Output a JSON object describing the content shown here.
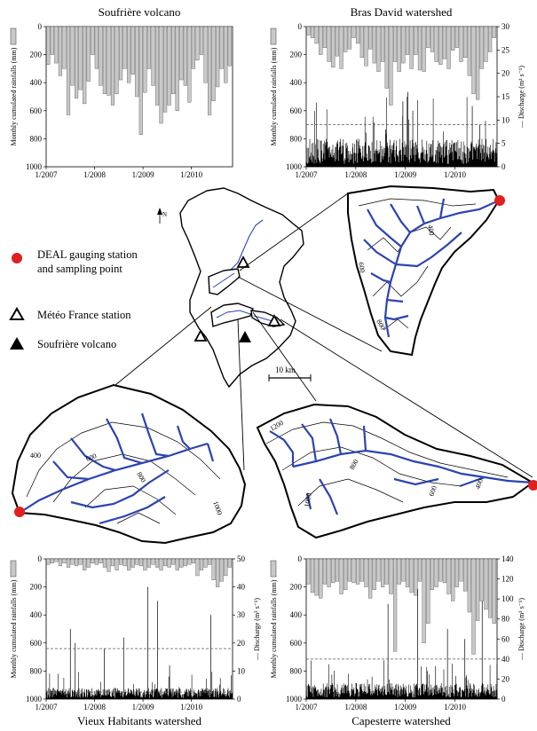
{
  "legend": {
    "gauging": "DEAL gauging station",
    "gauging2": "and sampling point",
    "meteo": "Météo France station",
    "volcano": "Soufrière volcano"
  },
  "map": {
    "scale_label": "10 km",
    "north_label": "N"
  },
  "contours": {
    "bras_david": [
      "400",
      "600",
      "800"
    ],
    "vieux_habitants": [
      "400",
      "600",
      "800",
      "1000"
    ],
    "capesterre": [
      "1200",
      "800",
      "600",
      "400",
      "1000"
    ]
  },
  "chart_data": [
    {
      "id": "soufriere",
      "type": "bar",
      "title": "Soufrière volcano",
      "ylabel": "Monthly cumulated rainfalls (mm)",
      "y2label": "",
      "ylim": [
        1000,
        0
      ],
      "yticks": [
        0,
        200,
        400,
        600,
        800,
        1000
      ],
      "y2lim": null,
      "y2ticks": [],
      "xlim": [
        2007.0,
        2010.85
      ],
      "xticks": [
        "1/2007",
        "1/2008",
        "1/2009",
        "1/2010"
      ],
      "rain": [
        270,
        200,
        260,
        350,
        300,
        630,
        420,
        510,
        450,
        550,
        390,
        200,
        300,
        420,
        480,
        490,
        560,
        480,
        380,
        300,
        400,
        340,
        500,
        770,
        470,
        300,
        420,
        560,
        690,
        610,
        560,
        480,
        600,
        380,
        420,
        540,
        300,
        240,
        200,
        400,
        630,
        530,
        430,
        300,
        400,
        280,
        360
      ],
      "discharge_mean": null,
      "discharge_peaks": [],
      "thresholds": []
    },
    {
      "id": "bras_david",
      "type": "bar",
      "title": "Bras David watershed",
      "ylabel": "Monthly cumulated rainfalls (mm)",
      "y2label": "— Discharge (m³ s⁻¹)",
      "ylim": [
        1000,
        0
      ],
      "yticks": [
        0,
        200,
        400,
        600,
        800,
        1000
      ],
      "y2lim": [
        0,
        30
      ],
      "y2ticks": [
        0,
        5,
        10,
        15,
        20,
        25,
        30
      ],
      "xlim": [
        2007.0,
        2010.85
      ],
      "xticks": [
        "1/2007",
        "1/2008",
        "1/2009",
        "1/2010"
      ],
      "rain": [
        60,
        80,
        120,
        200,
        150,
        250,
        290,
        210,
        300,
        180,
        160,
        80,
        120,
        220,
        280,
        160,
        260,
        320,
        250,
        440,
        560,
        250,
        320,
        260,
        200,
        300,
        200,
        310,
        320,
        150,
        180,
        250,
        270,
        230,
        300,
        170,
        150,
        250,
        220,
        350,
        480,
        520,
        300,
        250,
        180,
        80,
        230
      ],
      "discharge_mean": 3,
      "discharge_peaks": [
        [
          2008.95,
          14
        ],
        [
          2009.05,
          16
        ],
        [
          2009.15,
          12
        ],
        [
          2008.6,
          8
        ],
        [
          2010.35,
          13
        ],
        [
          2010.5,
          9
        ]
      ],
      "thresholds": [
        9
      ]
    },
    {
      "id": "vieux_habitants",
      "type": "bar",
      "title": "Vieux Habitants watershed",
      "ylabel": "Monthly cumulated rainfalls (mm)",
      "y2label": "— Discharge (m³ s⁻¹)",
      "ylim": [
        1000,
        0
      ],
      "yticks": [
        0,
        200,
        400,
        600,
        800,
        1000
      ],
      "y2lim": [
        0,
        50
      ],
      "y2ticks": [
        0,
        10,
        20,
        30,
        40,
        50
      ],
      "xlim": [
        2007.0,
        2010.85
      ],
      "xticks": [
        "1/2007",
        "1/2008",
        "1/2009",
        "1/2010"
      ],
      "rain": [
        40,
        30,
        20,
        50,
        30,
        60,
        40,
        50,
        40,
        80,
        60,
        30,
        40,
        30,
        60,
        90,
        50,
        80,
        40,
        50,
        80,
        60,
        40,
        50,
        80,
        60,
        40,
        60,
        80,
        50,
        60,
        40,
        80,
        60,
        50,
        40,
        30,
        120,
        80,
        60,
        40,
        150,
        200,
        160,
        120,
        60,
        80
      ],
      "discharge_mean": 2,
      "discharge_peaks": [
        [
          2007.5,
          25
        ],
        [
          2007.6,
          20
        ],
        [
          2008.2,
          18
        ],
        [
          2008.6,
          22
        ],
        [
          2009.1,
          40
        ],
        [
          2009.3,
          35
        ],
        [
          2009.55,
          12
        ],
        [
          2010.4,
          30
        ]
      ],
      "thresholds": [
        18,
        2.5
      ]
    },
    {
      "id": "capesterre",
      "type": "bar",
      "title": "Capesterre watershed",
      "ylabel": "Monthly cumulated rainfalls (mm)",
      "y2label": "— Discharge (m³ s⁻¹)",
      "ylim": [
        1000,
        0
      ],
      "yticks": [
        0,
        200,
        400,
        600,
        800,
        1000
      ],
      "y2lim": [
        0,
        140
      ],
      "y2ticks": [
        0,
        20,
        40,
        60,
        80,
        100,
        120,
        140
      ],
      "xlim": [
        2007.0,
        2010.85
      ],
      "xticks": [
        "1/2007",
        "1/2008",
        "1/2009",
        "1/2010"
      ],
      "rain": [
        180,
        240,
        260,
        280,
        180,
        200,
        170,
        160,
        250,
        220,
        160,
        170,
        180,
        160,
        200,
        280,
        220,
        160,
        200,
        180,
        250,
        660,
        180,
        160,
        200,
        240,
        260,
        160,
        600,
        460,
        220,
        200,
        160,
        170,
        250,
        300,
        200,
        160,
        230,
        380,
        680,
        440,
        300,
        360,
        420,
        460,
        420
      ],
      "discharge_mean": 8,
      "discharge_peaks": [
        [
          2008.65,
          95
        ],
        [
          2009.25,
          110
        ],
        [
          2009.85,
          70
        ],
        [
          2010.2,
          60
        ],
        [
          2010.55,
          100
        ]
      ],
      "thresholds": [
        40
      ]
    }
  ]
}
